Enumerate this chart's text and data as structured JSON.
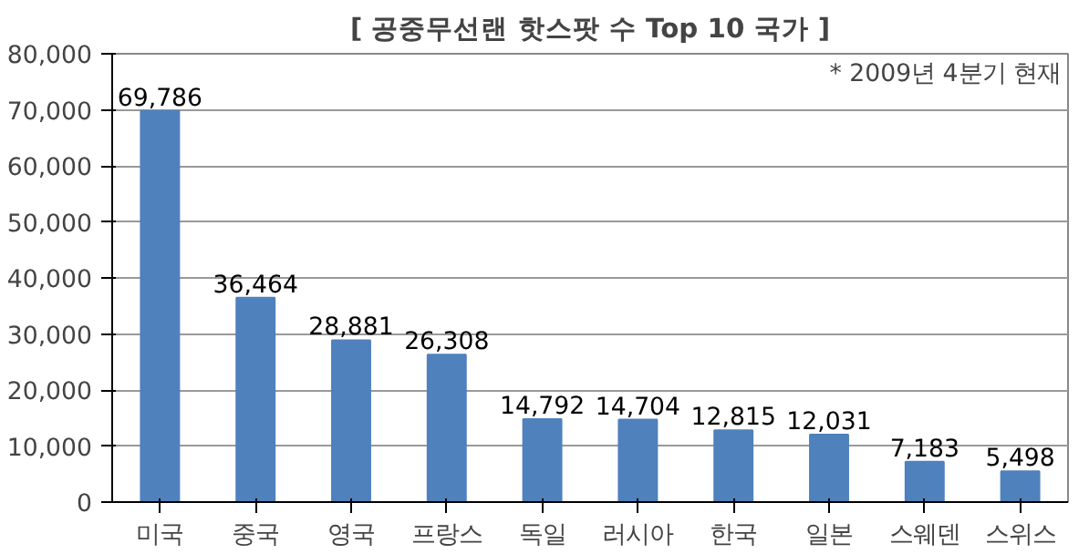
{
  "chart_data": {
    "type": "bar",
    "title": "[ 공중무선랜 핫스팟 수 Top 10 국가 ]",
    "annotations": [
      "* 2009년 4분기 현재"
    ],
    "categories": [
      "미국",
      "중국",
      "영국",
      "프랑스",
      "독일",
      "러시아",
      "한국",
      "일본",
      "스웨덴",
      "스위스"
    ],
    "values": [
      69786,
      36464,
      28881,
      26308,
      14792,
      14704,
      12815,
      12031,
      7183,
      5498
    ],
    "value_labels": [
      "69,786",
      "36,464",
      "28,881",
      "26,308",
      "14,792",
      "14,704",
      "12,815",
      "12,031",
      "7,183",
      "5,498"
    ],
    "color": "#4f81bd",
    "ylim": [
      0,
      80000
    ],
    "yticks": [
      {
        "value": 0,
        "label": "0"
      },
      {
        "value": 10000,
        "label": "10,000"
      },
      {
        "value": 20000,
        "label": "20,000"
      },
      {
        "value": 30000,
        "label": "30,000"
      },
      {
        "value": 40000,
        "label": "40,000"
      },
      {
        "value": 50000,
        "label": "50,000"
      },
      {
        "value": 60000,
        "label": "60,000"
      },
      {
        "value": 70000,
        "label": "70,000"
      },
      {
        "value": 80000,
        "label": "80,000"
      }
    ],
    "grid": "y"
  }
}
